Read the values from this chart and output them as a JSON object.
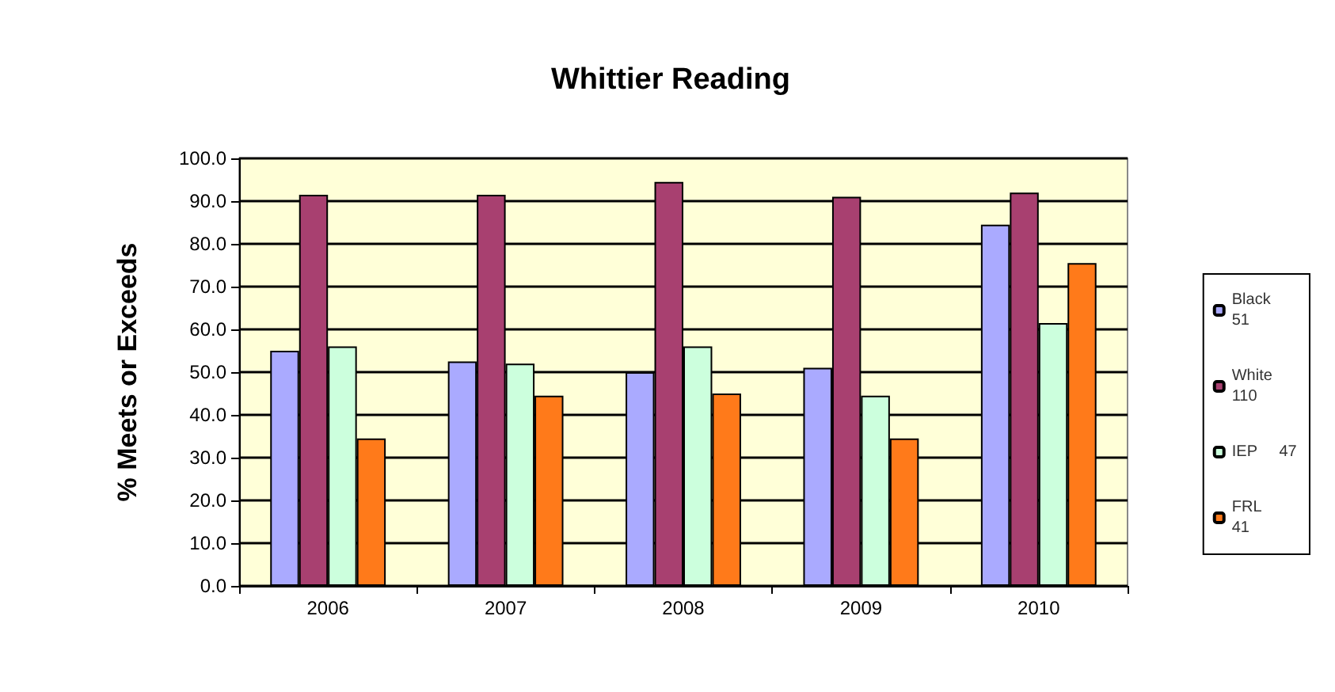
{
  "chart_data": {
    "type": "bar",
    "title": "Whittier Reading",
    "ylabel": "% Meets or Exceeds",
    "categories": [
      "2006",
      "2007",
      "2008",
      "2009",
      "2010"
    ],
    "series": [
      {
        "name": "Black\n51",
        "color": "#aaaaff",
        "values": [
          55,
          52.5,
          50,
          51,
          84.5
        ]
      },
      {
        "name": "White\n110",
        "color": "#a84070",
        "values": [
          91.5,
          91.5,
          94.5,
          91,
          92
        ]
      },
      {
        "name": "IEP     47",
        "color": "#ccffdd",
        "values": [
          56,
          52,
          56,
          44.5,
          61.5
        ]
      },
      {
        "name": "FRL\n41",
        "color": "#ff7a1a",
        "values": [
          34.5,
          44.5,
          45,
          34.5,
          75.5
        ]
      }
    ],
    "ylim": [
      0,
      100
    ],
    "yticks": [
      {
        "value": 0,
        "label": "0.0"
      },
      {
        "value": 10,
        "label": "10.0"
      },
      {
        "value": 20,
        "label": "20.0"
      },
      {
        "value": 30,
        "label": "30.0"
      },
      {
        "value": 40,
        "label": "40.0"
      },
      {
        "value": 50,
        "label": "50.0"
      },
      {
        "value": 60,
        "label": "60.0"
      },
      {
        "value": 70,
        "label": "70.0"
      },
      {
        "value": 80,
        "label": "80.0"
      },
      {
        "value": 90,
        "label": "90.0"
      },
      {
        "value": 100,
        "label": "100.0"
      }
    ],
    "grid": "y",
    "legend": "right"
  }
}
